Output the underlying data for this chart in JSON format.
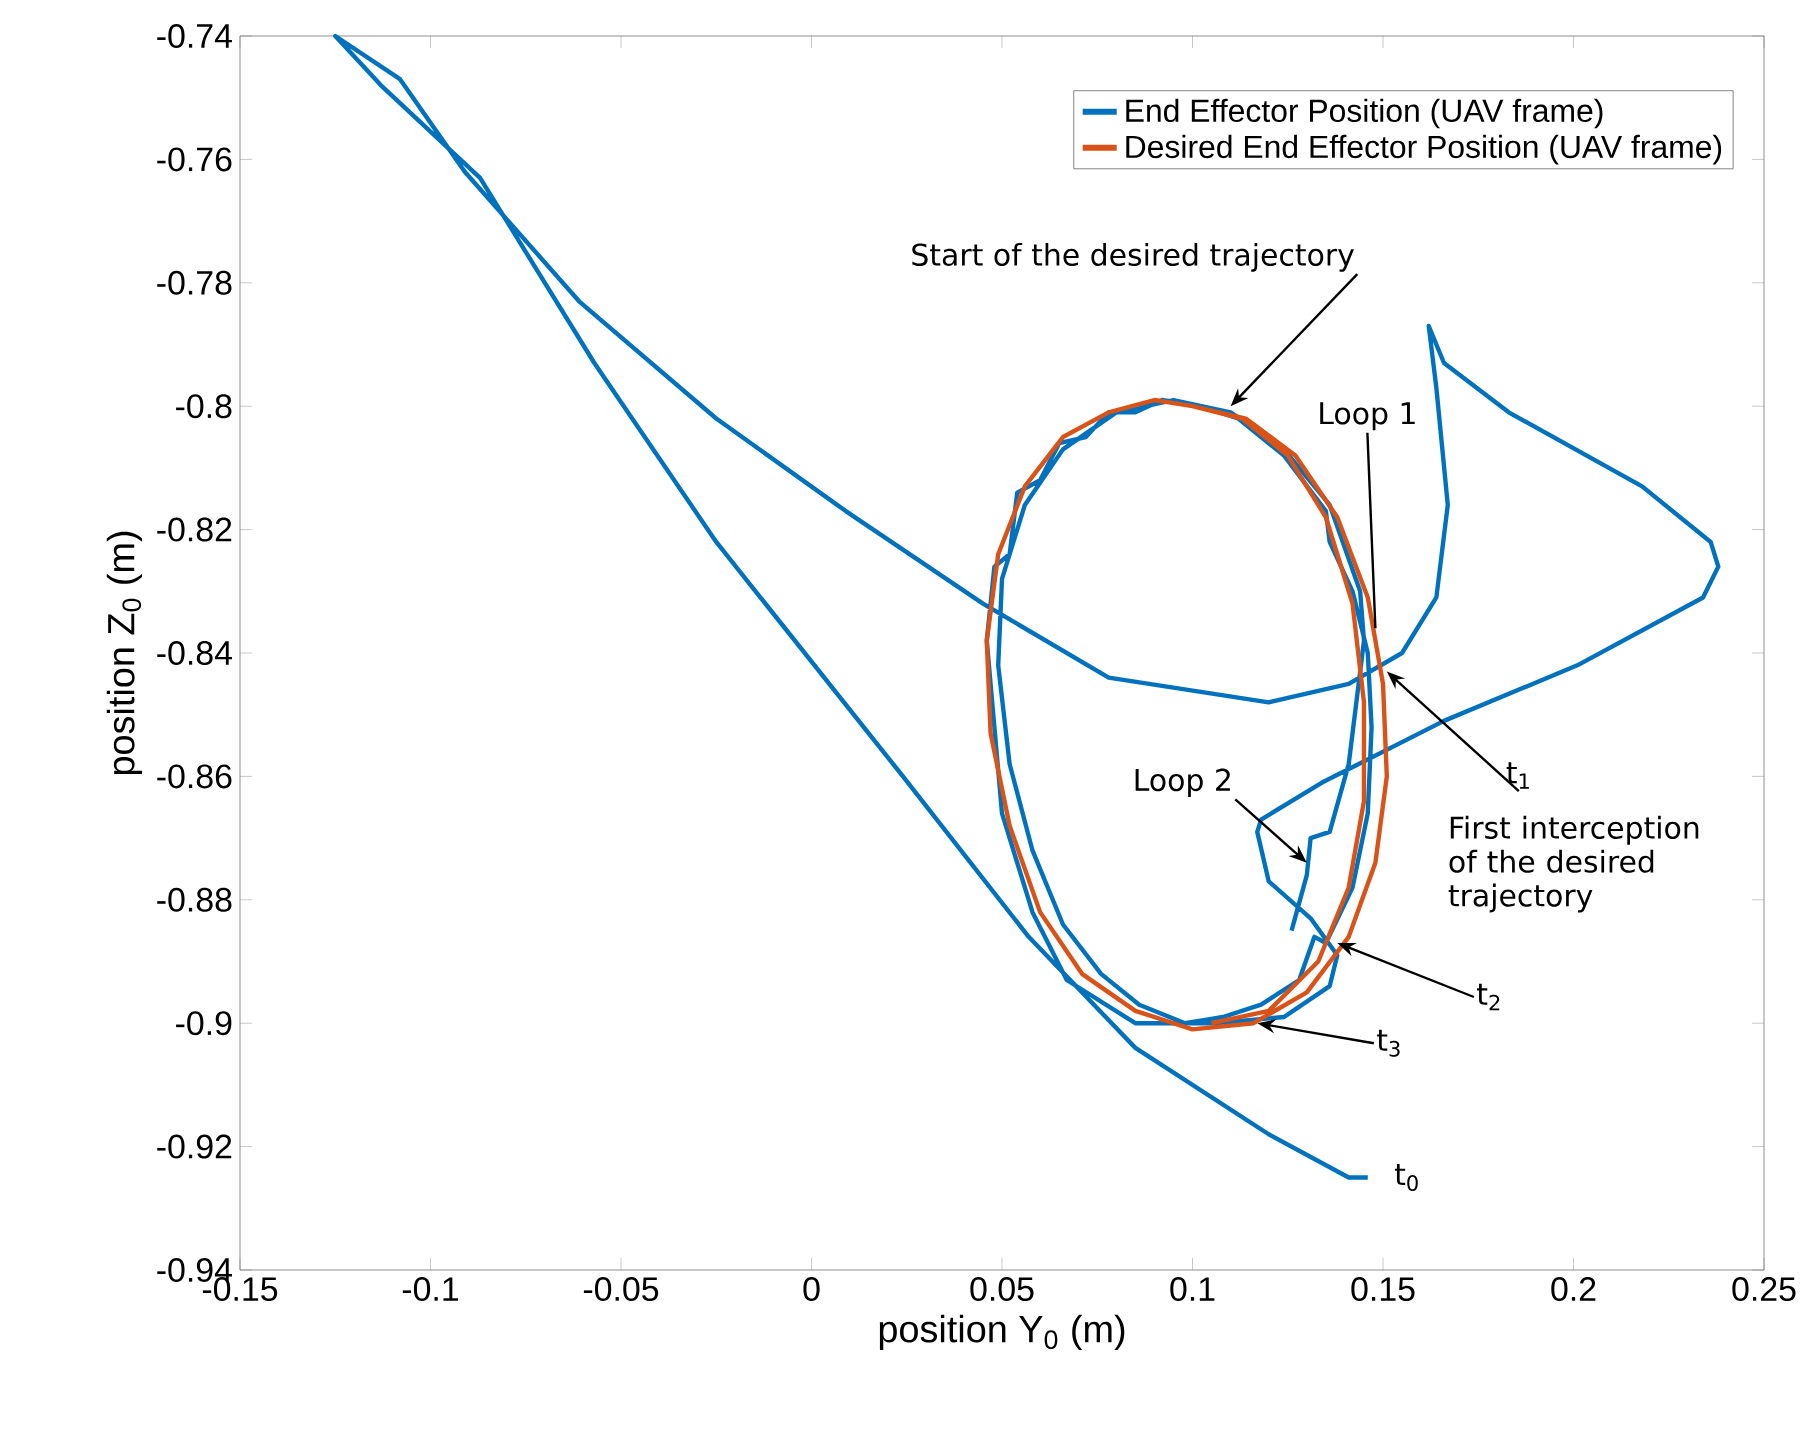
{
  "chart_data": {
    "type": "line",
    "xlabel": "position Y$_{0}$ (m)",
    "ylabel": "position Z$_{0}$ (m)",
    "xlim": [
      -0.15,
      0.25
    ],
    "ylim": [
      -0.94,
      -0.74
    ],
    "xticks": [
      -0.15,
      -0.1,
      -0.05,
      0,
      0.05,
      0.1,
      0.15,
      0.2,
      0.25
    ],
    "yticks": [
      -0.94,
      -0.92,
      -0.9,
      -0.88,
      -0.86,
      -0.84,
      -0.82,
      -0.8,
      -0.78,
      -0.76,
      -0.74
    ],
    "grid": false,
    "legend": "top right",
    "marker": "none",
    "line_style": "solid",
    "series": [
      {
        "name": "End Effector Position (UAV frame)",
        "color": "#0072bd",
        "x": [
          0.146,
          0.141,
          0.12,
          0.085,
          0.057,
          0.024,
          -0.025,
          -0.057,
          -0.087,
          -0.113,
          -0.125,
          -0.108,
          -0.091,
          -0.061,
          -0.025,
          0.009,
          0.045,
          0.078,
          0.12,
          0.141,
          0.155,
          0.164,
          0.167,
          0.164,
          0.162,
          0.166,
          0.183,
          0.218,
          0.236,
          0.238,
          0.234,
          0.201,
          0.166,
          0.134,
          0.118,
          0.117,
          0.12,
          0.131,
          0.138,
          0.136,
          0.124,
          0.106,
          0.085,
          0.067,
          0.058,
          0.052,
          0.05,
          0.048,
          0.046,
          0.048,
          0.052,
          0.054,
          0.06,
          0.065,
          0.072,
          0.078,
          0.085,
          0.092,
          0.102,
          0.112,
          0.124,
          0.135,
          0.136,
          0.142,
          0.146,
          0.147,
          0.146,
          0.142,
          0.135,
          0.132,
          0.128,
          0.118,
          0.108,
          0.098,
          0.086,
          0.076,
          0.066,
          0.058,
          0.052,
          0.049,
          0.05,
          0.056,
          0.066,
          0.08,
          0.095,
          0.11,
          0.124,
          0.136,
          0.144,
          0.145,
          0.141,
          0.136,
          0.131,
          0.13,
          0.126
        ],
        "values": [
          -0.925,
          -0.925,
          -0.918,
          -0.904,
          -0.886,
          -0.86,
          -0.822,
          -0.793,
          -0.763,
          -0.748,
          -0.74,
          -0.747,
          -0.762,
          -0.783,
          -0.802,
          -0.817,
          -0.832,
          -0.844,
          -0.848,
          -0.845,
          -0.84,
          -0.831,
          -0.816,
          -0.797,
          -0.787,
          -0.793,
          -0.801,
          -0.813,
          -0.822,
          -0.826,
          -0.831,
          -0.842,
          -0.851,
          -0.861,
          -0.867,
          -0.869,
          -0.877,
          -0.883,
          -0.889,
          -0.894,
          -0.899,
          -0.9,
          -0.9,
          -0.893,
          -0.882,
          -0.87,
          -0.866,
          -0.852,
          -0.838,
          -0.826,
          -0.824,
          -0.814,
          -0.812,
          -0.806,
          -0.805,
          -0.801,
          -0.801,
          -0.799,
          -0.8,
          -0.802,
          -0.808,
          -0.817,
          -0.822,
          -0.83,
          -0.84,
          -0.852,
          -0.866,
          -0.878,
          -0.887,
          -0.886,
          -0.893,
          -0.897,
          -0.899,
          -0.9,
          -0.897,
          -0.892,
          -0.884,
          -0.872,
          -0.858,
          -0.842,
          -0.828,
          -0.816,
          -0.807,
          -0.801,
          -0.799,
          -0.801,
          -0.807,
          -0.816,
          -0.83,
          -0.838,
          -0.858,
          -0.869,
          -0.87,
          -0.876,
          -0.885
        ]
      },
      {
        "name": "Desired End Effector Position (UAV frame)",
        "color": "#d95319",
        "x": [
          0.1,
          0.114,
          0.127,
          0.138,
          0.146,
          0.15,
          0.151,
          0.148,
          0.141,
          0.13,
          0.116,
          0.1,
          0.085,
          0.071,
          0.06,
          0.052,
          0.047,
          0.046,
          0.049,
          0.056,
          0.066,
          0.078,
          0.09,
          0.1,
          0.113,
          0.125,
          0.135,
          0.142,
          0.145,
          0.145,
          0.141,
          0.133,
          0.12,
          0.105
        ],
        "values": [
          -0.8,
          -0.802,
          -0.808,
          -0.818,
          -0.831,
          -0.845,
          -0.86,
          -0.874,
          -0.886,
          -0.895,
          -0.9,
          -0.901,
          -0.898,
          -0.892,
          -0.882,
          -0.868,
          -0.853,
          -0.838,
          -0.824,
          -0.813,
          -0.805,
          -0.801,
          -0.799,
          -0.8,
          -0.802,
          -0.808,
          -0.818,
          -0.832,
          -0.848,
          -0.864,
          -0.878,
          -0.89,
          -0.898,
          -0.9
        ]
      }
    ],
    "annotations": [
      {
        "text": "Start of the desired trajectory",
        "x": 0.11,
        "y": -0.8
      },
      {
        "text": "Loop 1",
        "x": 0.148,
        "y": -0.836
      },
      {
        "text": "Loop 2",
        "x": 0.13,
        "y": -0.874
      },
      {
        "text": "t$_{1}$",
        "x": 0.151,
        "y": -0.843
      },
      "First interception of the desired trajectory",
      {
        "text": "t$_{2}$",
        "x": 0.138,
        "y": -0.887
      },
      {
        "text": "t$_{3}$",
        "x": 0.117,
        "y": -0.9
      },
      {
        "text": "t$_{0}$",
        "x": 0.146,
        "y": -0.925
      }
    ]
  }
}
